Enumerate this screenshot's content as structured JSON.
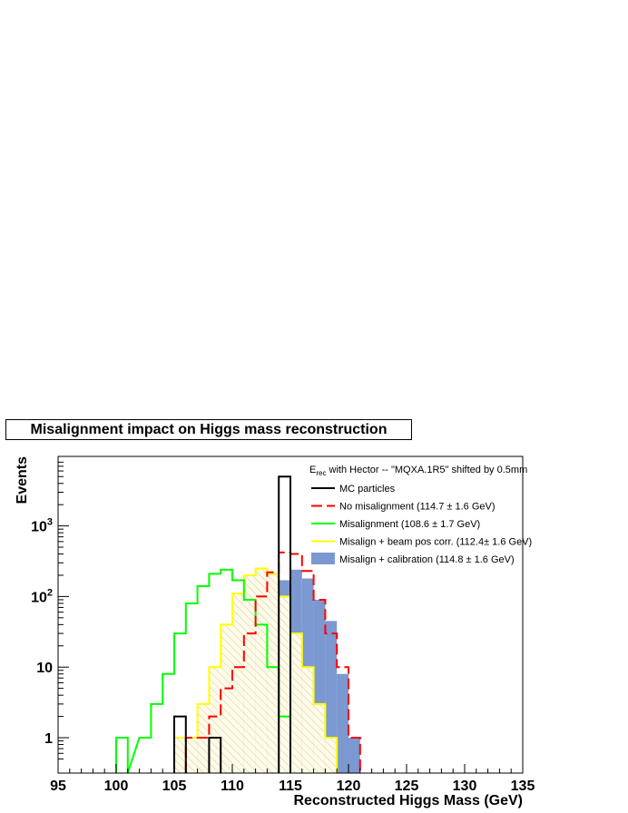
{
  "title": "Misalignment impact on Higgs mass reconstruction",
  "chart_data": {
    "type": "histogram",
    "title": "Misalignment impact on Higgs mass reconstruction",
    "xlabel": "Reconstructed Higgs Mass (GeV)",
    "ylabel": "Events",
    "xlim": [
      95,
      135
    ],
    "ylim": [
      0.5,
      8000
    ],
    "yscale": "log",
    "bin_width": 1,
    "x_ticks": [
      "95",
      "100",
      "105",
      "110",
      "115",
      "120",
      "125",
      "130",
      "135"
    ],
    "x_tick_values": [
      95,
      100,
      105,
      110,
      115,
      120,
      125,
      130,
      135
    ],
    "y_ticks": [
      "1",
      "10",
      "10^2",
      "10^3"
    ],
    "y_tick_values": [
      1,
      10,
      100,
      1000
    ],
    "legend": {
      "placement": "top-right",
      "header": {
        "main": "E",
        "sub": "rec",
        "rest": " with Hector -- \"MQXA.1R5\" shifted by 0.5mm"
      }
    },
    "series": [
      {
        "name": "Misalign + calibration (114.8 ± 1.6 GeV)",
        "style": "filled",
        "color": "#7b98d0",
        "bins": [
          [
            107,
            1
          ],
          [
            108,
            0.6
          ],
          [
            109,
            1
          ],
          [
            110,
            5
          ],
          [
            111,
            12
          ],
          [
            112,
            40
          ],
          [
            113,
            110
          ],
          [
            114,
            170
          ],
          [
            115,
            240
          ],
          [
            116,
            180
          ],
          [
            117,
            90
          ],
          [
            118,
            45
          ],
          [
            119,
            8
          ],
          [
            120,
            1
          ]
        ]
      },
      {
        "name": "Misalign + beam pos corr. (112.4± 1.6 GeV)",
        "style": "hatched",
        "color": "#ffff00",
        "bins": [
          [
            105,
            1
          ],
          [
            106,
            1
          ],
          [
            107,
            3
          ],
          [
            108,
            10
          ],
          [
            109,
            40
          ],
          [
            110,
            110
          ],
          [
            111,
            200
          ],
          [
            112,
            250
          ],
          [
            113,
            210
          ],
          [
            114,
            100
          ],
          [
            115,
            30
          ],
          [
            116,
            10
          ],
          [
            117,
            3
          ],
          [
            118,
            1
          ]
        ]
      },
      {
        "name": "Misalignment (108.6 ± 1.7 GeV)",
        "style": "line",
        "color": "#00ff00",
        "bins": [
          [
            100,
            1
          ],
          [
            102,
            1
          ],
          [
            103,
            3
          ],
          [
            104,
            8
          ],
          [
            105,
            30
          ],
          [
            106,
            80
          ],
          [
            107,
            140
          ],
          [
            108,
            210
          ],
          [
            109,
            240
          ],
          [
            110,
            170
          ],
          [
            111,
            90
          ],
          [
            112,
            40
          ],
          [
            113,
            10
          ],
          [
            114,
            2
          ]
        ]
      },
      {
        "name": "No misalignment (114.7 ± 1.6 GeV)",
        "style": "dashed",
        "color": "#ff0000",
        "bins": [
          [
            106,
            1
          ],
          [
            107,
            1
          ],
          [
            108,
            2
          ],
          [
            109,
            5
          ],
          [
            110,
            10
          ],
          [
            111,
            30
          ],
          [
            112,
            100
          ],
          [
            113,
            220
          ],
          [
            114,
            420
          ],
          [
            115,
            400
          ],
          [
            116,
            230
          ],
          [
            117,
            90
          ],
          [
            118,
            30
          ],
          [
            119,
            10
          ],
          [
            120,
            1
          ]
        ]
      },
      {
        "name": "MC particles",
        "style": "line",
        "color": "#000000",
        "bins": [
          [
            105,
            2
          ],
          [
            108,
            1
          ],
          [
            114,
            5000
          ]
        ]
      }
    ]
  }
}
